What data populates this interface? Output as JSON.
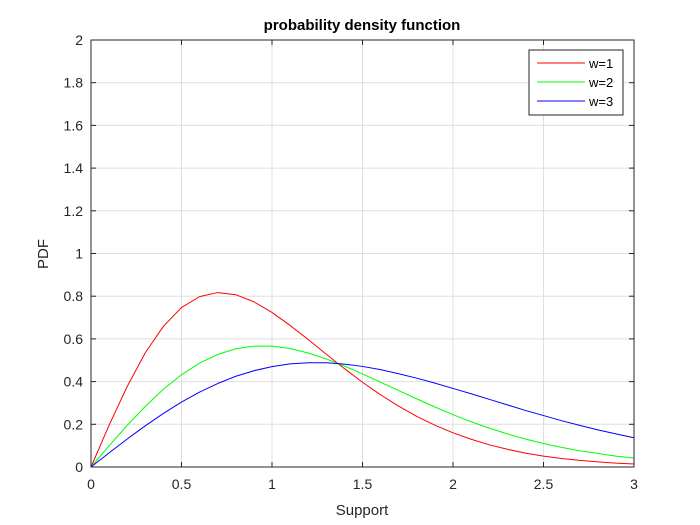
{
  "chart_data": {
    "type": "line",
    "title": "probability density function",
    "xlabel": "Support",
    "ylabel": "PDF",
    "xlim": [
      0,
      3
    ],
    "ylim": [
      0,
      2
    ],
    "xticks": [
      0,
      0.5,
      1,
      1.5,
      2,
      2.5,
      3
    ],
    "xtick_labels": [
      "0",
      "0.5",
      "1",
      "1.5",
      "2",
      "2.5",
      "3"
    ],
    "yticks": [
      0,
      0.2,
      0.4,
      0.6,
      0.8,
      1,
      1.2,
      1.4,
      1.6,
      1.8,
      2
    ],
    "ytick_labels": [
      "0",
      "0.2",
      "0.4",
      "0.6",
      "0.8",
      "1",
      "1.2",
      "1.4",
      "1.6",
      "1.8",
      "2"
    ],
    "grid": true,
    "legend_position": "top-right",
    "x": [
      0,
      0.1,
      0.2,
      0.3,
      0.4,
      0.5,
      0.6,
      0.7,
      0.8,
      0.9,
      1.0,
      1.1,
      1.2,
      1.3,
      1.4,
      1.5,
      1.6,
      1.7,
      1.8,
      1.9,
      2.0,
      2.1,
      2.2,
      2.3,
      2.4,
      2.5,
      2.6,
      2.7,
      2.8,
      2.9,
      3.0
    ],
    "series": [
      {
        "name": "w=1",
        "color": "#ff0000",
        "values": [
          0,
          0.196,
          0.377,
          0.535,
          0.659,
          0.747,
          0.798,
          0.817,
          0.807,
          0.774,
          0.724,
          0.663,
          0.597,
          0.528,
          0.461,
          0.397,
          0.338,
          0.285,
          0.237,
          0.196,
          0.16,
          0.13,
          0.104,
          0.083,
          0.065,
          0.051,
          0.04,
          0.031,
          0.024,
          0.018,
          0.014
        ]
      },
      {
        "name": "w=2",
        "color": "#00ff00",
        "values": [
          0,
          0.099,
          0.195,
          0.284,
          0.364,
          0.432,
          0.487,
          0.527,
          0.554,
          0.566,
          0.566,
          0.555,
          0.534,
          0.506,
          0.473,
          0.436,
          0.397,
          0.358,
          0.319,
          0.281,
          0.245,
          0.212,
          0.182,
          0.155,
          0.131,
          0.11,
          0.092,
          0.076,
          0.063,
          0.051,
          0.042
        ]
      },
      {
        "name": "w=3",
        "color": "#0000ff",
        "values": [
          0,
          0.066,
          0.131,
          0.193,
          0.251,
          0.304,
          0.351,
          0.391,
          0.425,
          0.451,
          0.47,
          0.483,
          0.488,
          0.488,
          0.482,
          0.471,
          0.456,
          0.437,
          0.416,
          0.393,
          0.368,
          0.343,
          0.317,
          0.291,
          0.265,
          0.241,
          0.217,
          0.195,
          0.174,
          0.155,
          0.137
        ]
      }
    ]
  }
}
